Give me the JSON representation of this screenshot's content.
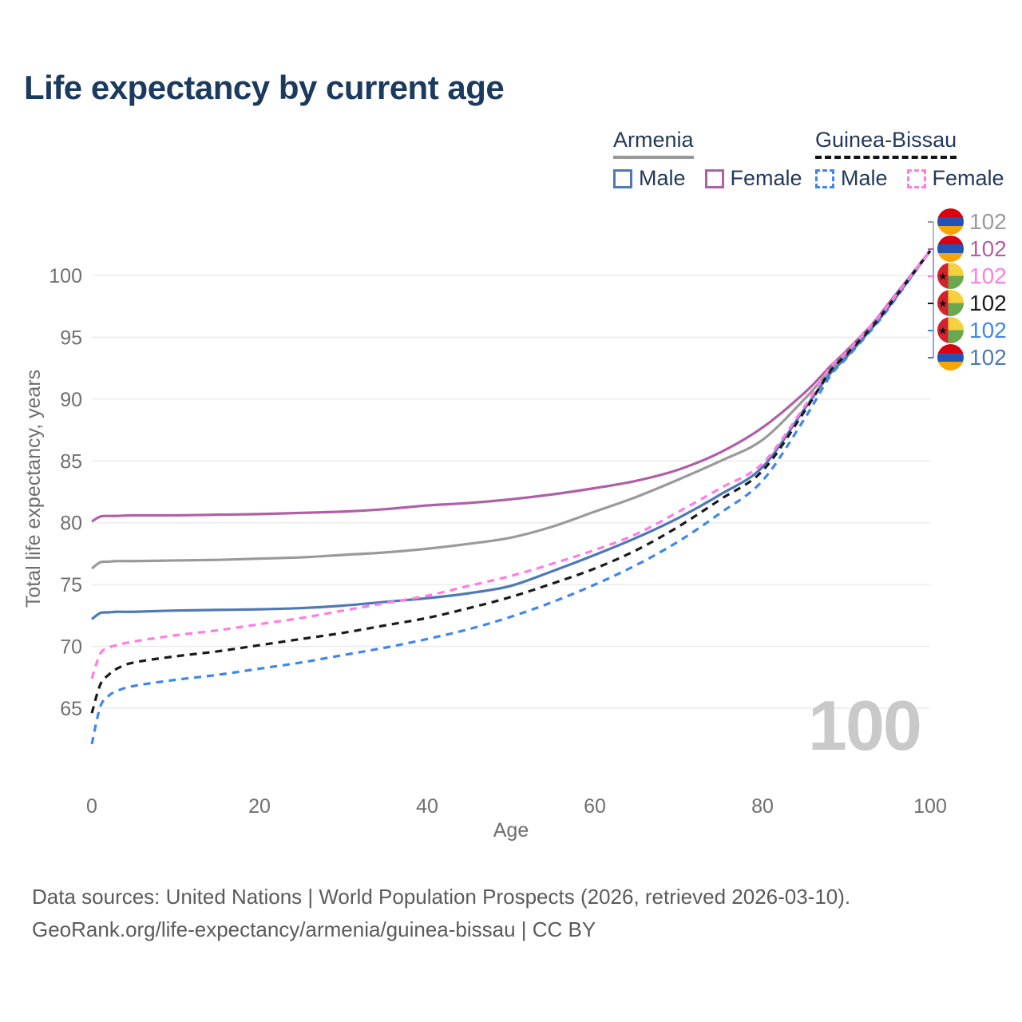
{
  "title": "Life expectancy by current age",
  "watermark": "100",
  "footer": {
    "line1": "Data sources: United Nations | World Population Prospects (2026, retrieved 2026-03-10).",
    "line2": "GeoRank.org/life-expectancy/armenia/guinea-bissau | CC BY"
  },
  "legend": {
    "groups": [
      {
        "label": "Armenia",
        "underline_color": "#999999",
        "underline_style": "solid",
        "items": [
          {
            "label": "Male",
            "color": "#4e79b6",
            "dash": false
          },
          {
            "label": "Female",
            "color": "#b05fa6",
            "dash": false
          }
        ]
      },
      {
        "label": "Guinea-Bissau",
        "underline_color": "#141414",
        "underline_style": "dashed",
        "items": [
          {
            "label": "Male",
            "color": "#3e86f0",
            "dash": true
          },
          {
            "label": "Female",
            "color": "#ff7ce3",
            "dash": true
          }
        ]
      }
    ]
  },
  "chart_data": {
    "type": "line",
    "title": "Life expectancy by current age",
    "xlabel": "Age",
    "ylabel": "Total life expectancy, years",
    "xlim": [
      0,
      100
    ],
    "ylim": [
      62,
      103
    ],
    "x_ticks": [
      0,
      20,
      40,
      60,
      80,
      100
    ],
    "y_ticks": [
      65,
      70,
      75,
      80,
      85,
      90,
      95,
      100
    ],
    "grid": "horizontal",
    "legend_position": "top-right",
    "x": [
      0,
      1,
      2,
      3,
      5,
      10,
      15,
      20,
      25,
      30,
      35,
      40,
      45,
      50,
      55,
      60,
      65,
      70,
      75,
      80,
      85,
      88,
      90,
      93,
      95,
      100
    ],
    "series": [
      {
        "name": "Armenia Male",
        "country": "Armenia",
        "sex": "Male",
        "color": "#4e79b6",
        "dash": "solid",
        "values": [
          72.2,
          72.7,
          72.75,
          72.8,
          72.8,
          72.9,
          72.95,
          73.0,
          73.1,
          73.3,
          73.6,
          73.9,
          74.3,
          74.9,
          76.1,
          77.4,
          78.8,
          80.4,
          82.3,
          84.5,
          89.2,
          92.0,
          93.4,
          95.7,
          97.4,
          102
        ]
      },
      {
        "name": "Armenia",
        "country": "Armenia",
        "sex": "Both",
        "color": "#9a9a9a",
        "dash": "solid",
        "values": [
          76.3,
          76.8,
          76.85,
          76.9,
          76.9,
          76.95,
          77.0,
          77.1,
          77.2,
          77.4,
          77.6,
          77.9,
          78.3,
          78.8,
          79.7,
          80.9,
          82.1,
          83.5,
          85.0,
          86.7,
          90.0,
          92.3,
          93.7,
          95.9,
          97.6,
          102
        ]
      },
      {
        "name": "Armenia Female",
        "country": "Armenia",
        "sex": "Female",
        "color": "#b05fa6",
        "dash": "solid",
        "values": [
          80.1,
          80.5,
          80.55,
          80.55,
          80.6,
          80.6,
          80.65,
          80.7,
          80.8,
          80.9,
          81.1,
          81.4,
          81.6,
          81.9,
          82.3,
          82.8,
          83.4,
          84.3,
          85.7,
          87.7,
          90.5,
          92.6,
          93.9,
          96.0,
          97.7,
          102
        ]
      },
      {
        "name": "Guinea-Bissau Male",
        "country": "Guinea-Bissau",
        "sex": "Male",
        "color": "#3e86f0",
        "dash": "dashed",
        "values": [
          62.1,
          65.1,
          66.0,
          66.4,
          66.8,
          67.3,
          67.7,
          68.2,
          68.7,
          69.3,
          69.9,
          70.6,
          71.4,
          72.4,
          73.6,
          75.0,
          76.6,
          78.5,
          80.8,
          83.4,
          88.4,
          91.8,
          93.3,
          95.6,
          97.3,
          102
        ]
      },
      {
        "name": "Guinea-Bissau",
        "country": "Guinea-Bissau",
        "sex": "Both",
        "color": "#1a1a1a",
        "dash": "dashed",
        "values": [
          64.6,
          66.9,
          67.7,
          68.2,
          68.7,
          69.2,
          69.6,
          70.1,
          70.6,
          71.1,
          71.7,
          72.3,
          73.1,
          74.0,
          75.1,
          76.3,
          77.8,
          79.7,
          81.9,
          84.2,
          89.0,
          92.2,
          93.6,
          95.8,
          97.5,
          102
        ]
      },
      {
        "name": "Guinea-Bissau Female",
        "country": "Guinea-Bissau",
        "sex": "Female",
        "color": "#ff7ce3",
        "dash": "dashed",
        "values": [
          67.4,
          69.4,
          69.9,
          70.1,
          70.4,
          70.9,
          71.3,
          71.8,
          72.3,
          72.9,
          73.5,
          74.1,
          74.9,
          75.7,
          76.7,
          77.8,
          79.1,
          80.9,
          82.8,
          84.8,
          89.4,
          92.5,
          93.8,
          96.0,
          97.6,
          102
        ]
      }
    ]
  },
  "end_labels": [
    {
      "flag": "armenia",
      "value": "102",
      "color": "#9a9a9a",
      "series": "Armenia"
    },
    {
      "flag": "armenia",
      "value": "102",
      "color": "#b05fa6",
      "series": "Armenia Female"
    },
    {
      "flag": "guinea-bissau",
      "value": "102",
      "color": "#ff7ce3",
      "series": "Guinea-Bissau Female"
    },
    {
      "flag": "guinea-bissau",
      "value": "102",
      "color": "#1a1a1a",
      "series": "Guinea-Bissau"
    },
    {
      "flag": "guinea-bissau",
      "value": "102",
      "color": "#3e86f0",
      "series": "Guinea-Bissau Male"
    },
    {
      "flag": "armenia",
      "value": "102",
      "color": "#4e79b6",
      "series": "Armenia Male"
    }
  ],
  "flag_colors": {
    "armenia": {
      "red": "#d90012",
      "blue": "#2353b5",
      "orange": "#f7a500"
    },
    "guinea_bissau": {
      "red": "#d3212d",
      "yellow": "#f5d03f",
      "green": "#6aa84f",
      "star": "#111111"
    }
  }
}
